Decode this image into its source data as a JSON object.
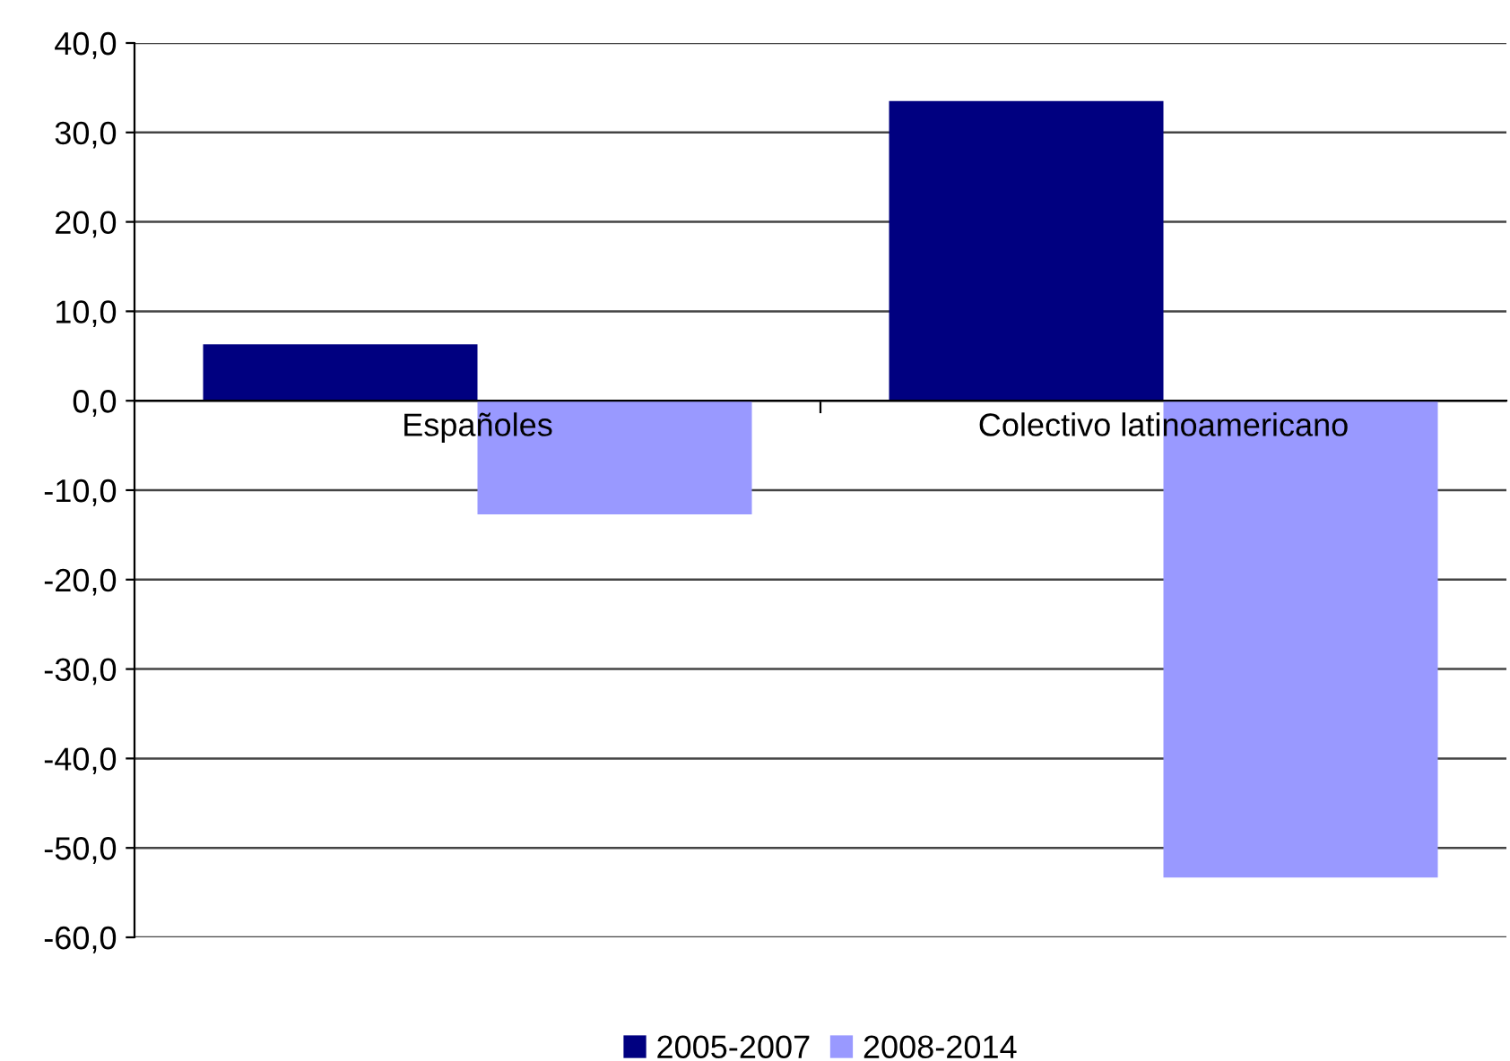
{
  "chart_data": {
    "type": "bar",
    "categories": [
      "Españoles",
      "Colectivo latinoamericano"
    ],
    "series": [
      {
        "name": "2005-2007",
        "color": "#000080",
        "values": [
          6.3,
          33.5
        ]
      },
      {
        "name": "2008-2014",
        "color": "#9999ff",
        "values": [
          -12.7,
          -53.3
        ]
      }
    ],
    "ylim": [
      -60,
      40
    ],
    "yticks": [
      {
        "value": -60,
        "label": "-60,0"
      },
      {
        "value": -50,
        "label": "-50,0"
      },
      {
        "value": -40,
        "label": "-40,0"
      },
      {
        "value": -30,
        "label": "-30,0"
      },
      {
        "value": -20,
        "label": "-20,0"
      },
      {
        "value": -10,
        "label": "-10,0"
      },
      {
        "value": 0,
        "label": "0,0"
      },
      {
        "value": 10,
        "label": "10,0"
      },
      {
        "value": 20,
        "label": "20,0"
      },
      {
        "value": 30,
        "label": "30,0"
      },
      {
        "value": 40,
        "label": "40,0"
      }
    ],
    "grid": "y",
    "legend": "bottom"
  }
}
